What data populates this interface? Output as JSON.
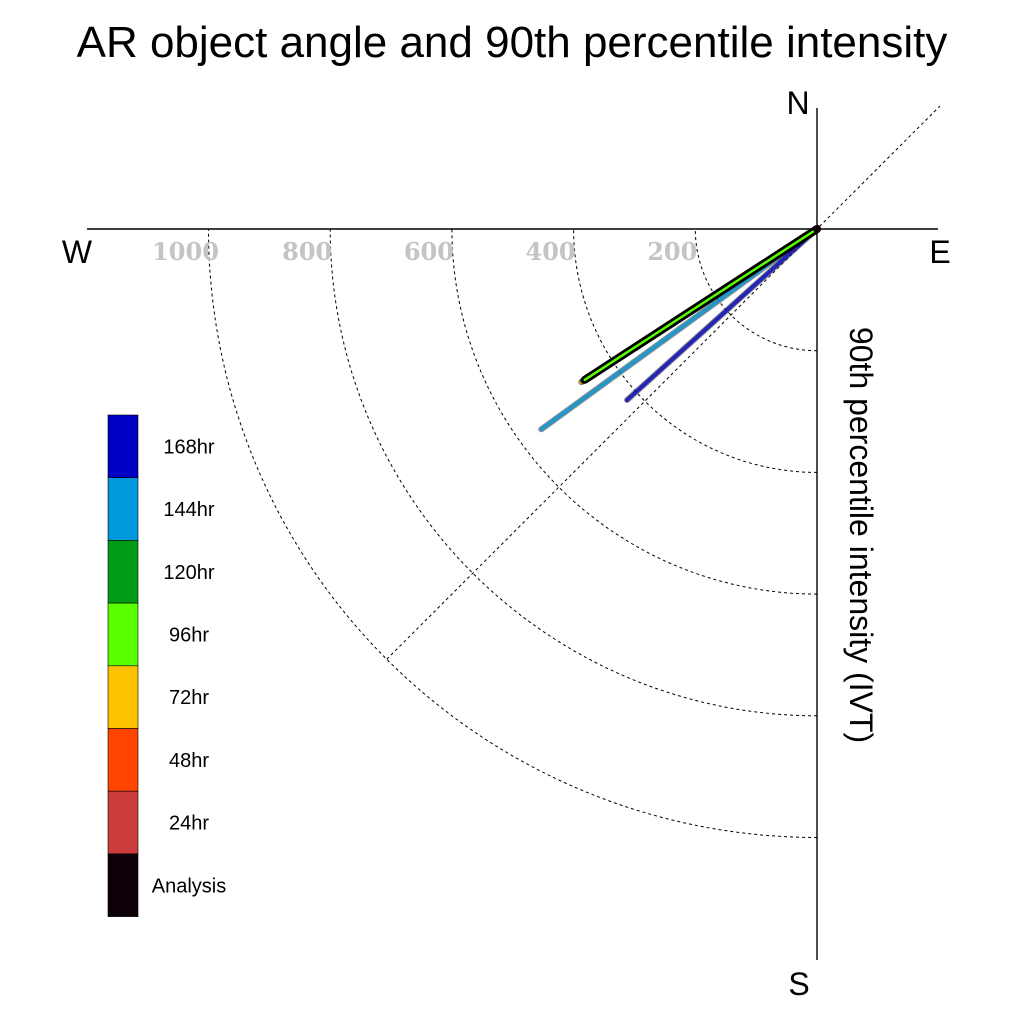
{
  "chart_data": {
    "type": "polar-vector",
    "title": "AR object angle and 90th percentile intensity",
    "ylabel": "90th percentile intensity (IVT)",
    "compass": {
      "n": "N",
      "e": "E",
      "s": "S",
      "w": "W"
    },
    "radial_ticks": [
      {
        "value": 200,
        "label": "200"
      },
      {
        "value": 400,
        "label": "400"
      },
      {
        "value": 600,
        "label": "600"
      },
      {
        "value": 800,
        "label": "800"
      },
      {
        "value": 1000,
        "label": "1000"
      }
    ],
    "rmax": 1200,
    "series": [
      {
        "name": "24hr",
        "color": "#cc3c3c",
        "bearing": 237,
        "intensity": 460
      },
      {
        "name": "48hr",
        "color": "#ff4500",
        "bearing": 237,
        "intensity": 460
      },
      {
        "name": "72hr",
        "color": "#ffc200",
        "bearing": 237,
        "intensity": 462
      },
      {
        "name": "96hr",
        "color": "#5aff00",
        "bearing": 237,
        "intensity": 458
      },
      {
        "name": "120hr",
        "color": "#009c17",
        "bearing": 237,
        "intensity": 458
      },
      {
        "name": "144hr",
        "color": "#0099dc",
        "bearing": 234,
        "intensity": 560
      },
      {
        "name": "168hr",
        "color": "#0000c4",
        "bearing": 228,
        "intensity": 420
      },
      {
        "name": "Analysis",
        "color": "#0d0009",
        "bearing": 237,
        "intensity": 455
      }
    ],
    "legend": {
      "placement": "bottom-left",
      "order": [
        "168hr",
        "144hr",
        "120hr",
        "96hr",
        "72hr",
        "48hr",
        "24hr",
        "Analysis"
      ]
    }
  }
}
